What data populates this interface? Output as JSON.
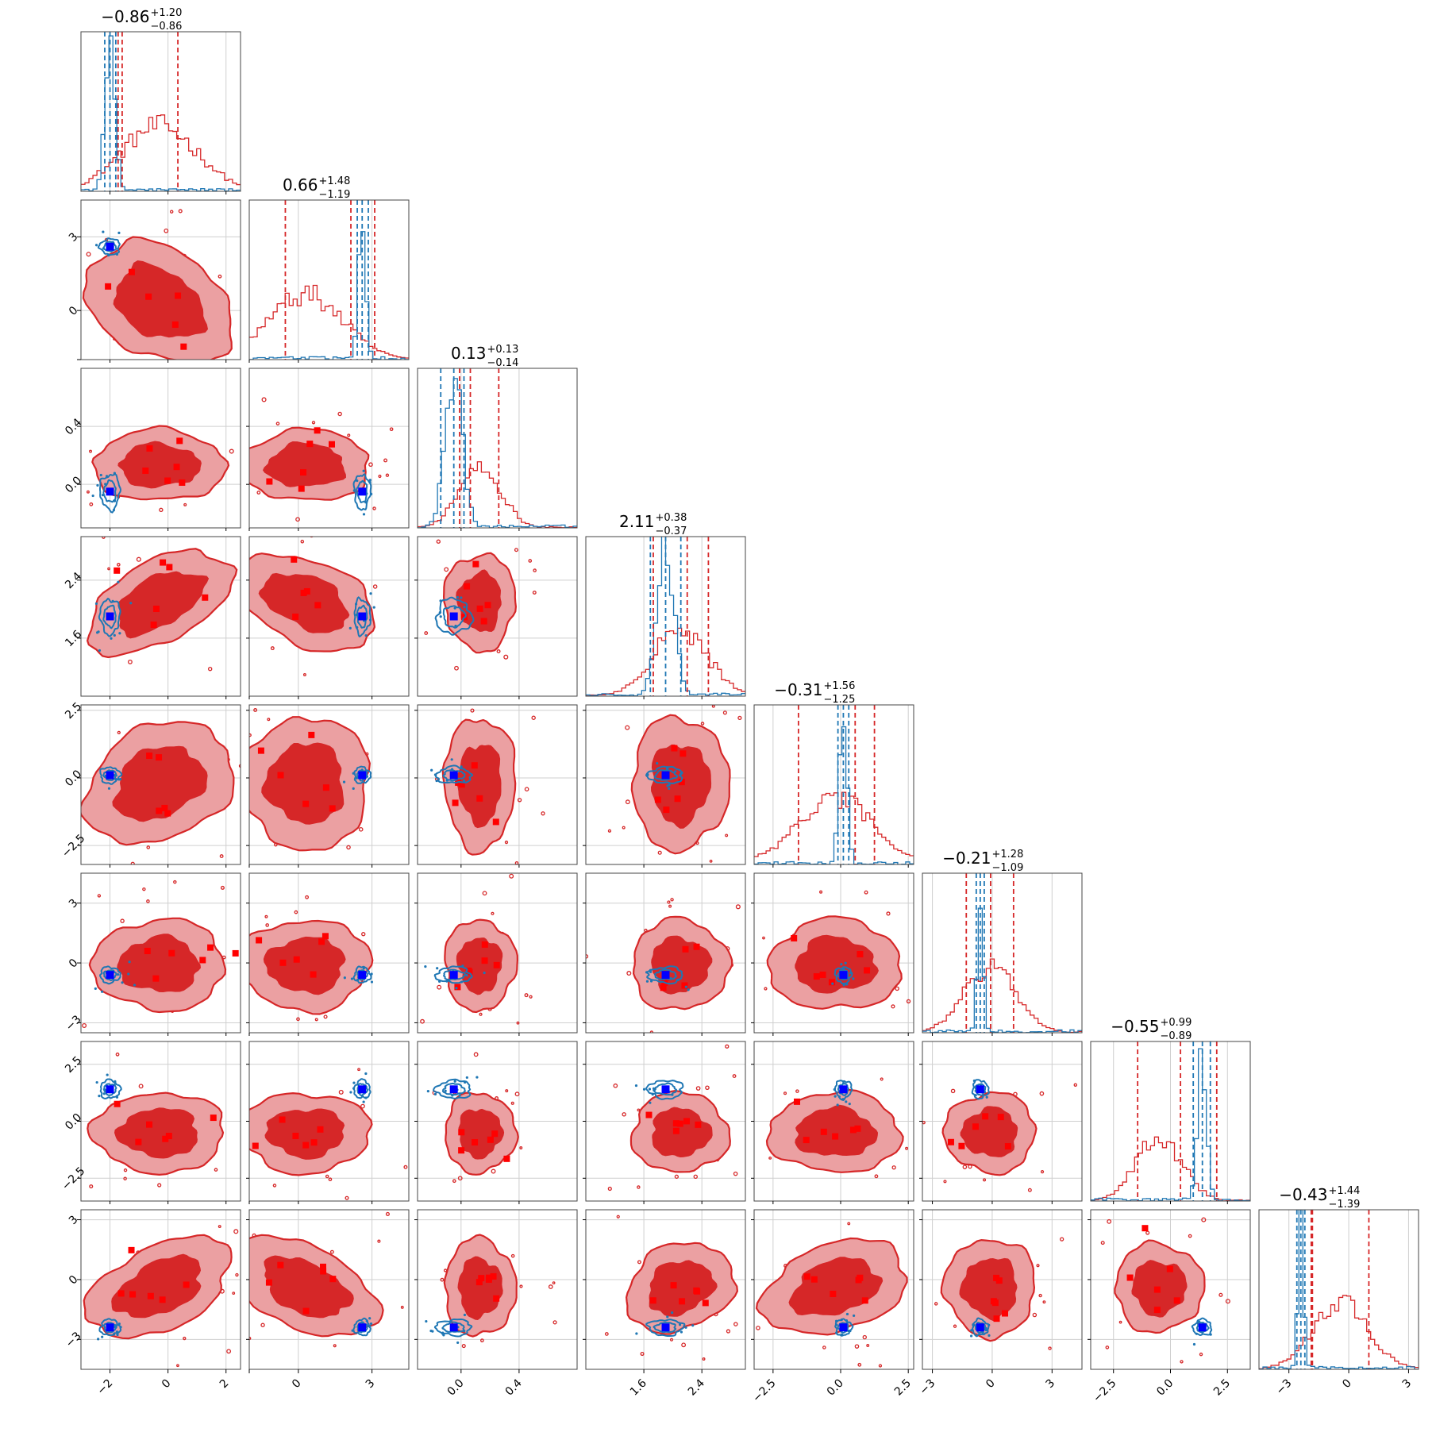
{
  "chart_data": {
    "type": "corner",
    "n_params": 8,
    "grid": true,
    "series": [
      {
        "name": "",
        "color": "#d62728"
      },
      {
        "name": "",
        "color": "#1f77b4"
      }
    ],
    "titles": [
      {
        "median": "−0.86",
        "plus": "+1.20",
        "minus": "−0.86"
      },
      {
        "median": "0.66",
        "plus": "+1.48",
        "minus": "−1.19"
      },
      {
        "median": "0.13",
        "plus": "+0.13",
        "minus": "−0.14"
      },
      {
        "median": "2.11",
        "plus": "+0.38",
        "minus": "−0.37"
      },
      {
        "median": "−0.31",
        "plus": "+1.56",
        "minus": "−1.25"
      },
      {
        "median": "−0.21",
        "plus": "+1.28",
        "minus": "−1.09"
      },
      {
        "median": "−0.55",
        "plus": "+0.99",
        "minus": "−0.89"
      },
      {
        "median": "−0.43",
        "plus": "+1.44",
        "minus": "−1.39"
      }
    ],
    "params": [
      {
        "range": [
          -3.0,
          2.5
        ],
        "ticks": [
          -2,
          0,
          2
        ],
        "tick_labels": [
          "−2",
          "0",
          "2"
        ],
        "red": {
          "mean": -0.3,
          "sd": 1.3,
          "quantiles": [
            -1.72,
            0.34
          ],
          "truth": -2.0
        },
        "blue": {
          "mean": -2.0,
          "sd": 0.17,
          "quantiles": [
            -2.18,
            -1.8
          ]
        }
      },
      {
        "range": [
          -2.0,
          4.5
        ],
        "ticks": [
          -2,
          0,
          3
        ],
        "tick_labels": [
          "",
          "0",
          "3"
        ],
        "red": {
          "mean": 0.3,
          "sd": 1.5,
          "quantiles": [
            -0.53,
            2.14
          ],
          "truth": 2.5
        },
        "blue": {
          "mean": 2.6,
          "sd": 0.15,
          "quantiles": [
            2.4,
            2.85
          ]
        }
      },
      {
        "range": [
          -0.3,
          0.8
        ],
        "ticks": [
          0.0,
          0.4
        ],
        "tick_labels": [
          "0.0",
          "0.4"
        ],
        "red": {
          "mean": 0.13,
          "sd": 0.14,
          "quantiles": [
            -0.01,
            0.26
          ],
          "truth": -0.05
        },
        "blue": {
          "mean": -0.05,
          "sd": 0.06,
          "quantiles": [
            -0.14,
            0.02
          ]
        }
      },
      {
        "range": [
          0.8,
          3.0
        ],
        "ticks": [
          1.6,
          2.4
        ],
        "tick_labels": [
          "1.6",
          "2.4"
        ],
        "red": {
          "mean": 2.1,
          "sd": 0.38,
          "quantiles": [
            1.73,
            2.49
          ],
          "truth": 1.9
        },
        "blue": {
          "mean": 1.9,
          "sd": 0.12,
          "quantiles": [
            1.69,
            2.11
          ]
        }
      },
      {
        "range": [
          -3.2,
          2.7
        ],
        "ticks": [
          -2.5,
          0.0,
          2.5
        ],
        "tick_labels": [
          "−2.5",
          "0.0",
          "2.5"
        ],
        "red": {
          "mean": -0.2,
          "sd": 1.4,
          "quantiles": [
            -1.56,
            1.25
          ],
          "truth": 0.1
        },
        "blue": {
          "mean": 0.1,
          "sd": 0.15,
          "quantiles": [
            -0.1,
            0.3
          ]
        }
      },
      {
        "range": [
          -3.5,
          4.5
        ],
        "ticks": [
          -3,
          0,
          3
        ],
        "tick_labels": [
          "−3",
          "0",
          "3"
        ],
        "red": {
          "mean": -0.1,
          "sd": 1.3,
          "quantiles": [
            -1.3,
            1.07
          ],
          "truth": -0.6
        },
        "blue": {
          "mean": -0.6,
          "sd": 0.15,
          "quantiles": [
            -0.8,
            -0.4
          ]
        }
      },
      {
        "range": [
          -3.5,
          3.5
        ],
        "ticks": [
          -2.5,
          0.0,
          2.5
        ],
        "tick_labels": [
          "−2.5",
          "0.0",
          "2.5"
        ],
        "red": {
          "mean": -0.5,
          "sd": 1.0,
          "quantiles": [
            -1.44,
            0.44
          ],
          "truth": 1.4
        },
        "blue": {
          "mean": 1.4,
          "sd": 0.2,
          "quantiles": [
            1.0,
            1.75
          ]
        }
      },
      {
        "range": [
          -4.5,
          3.5
        ],
        "ticks": [
          -3,
          0,
          3
        ],
        "tick_labels": [
          "−3",
          "0",
          "3"
        ],
        "red": {
          "mean": -0.4,
          "sd": 1.4,
          "quantiles": [
            -1.82,
            1.01
          ],
          "truth": -2.4
        },
        "blue": {
          "mean": -2.4,
          "sd": 0.15,
          "quantiles": [
            -2.6,
            -2.2
          ]
        }
      }
    ]
  }
}
